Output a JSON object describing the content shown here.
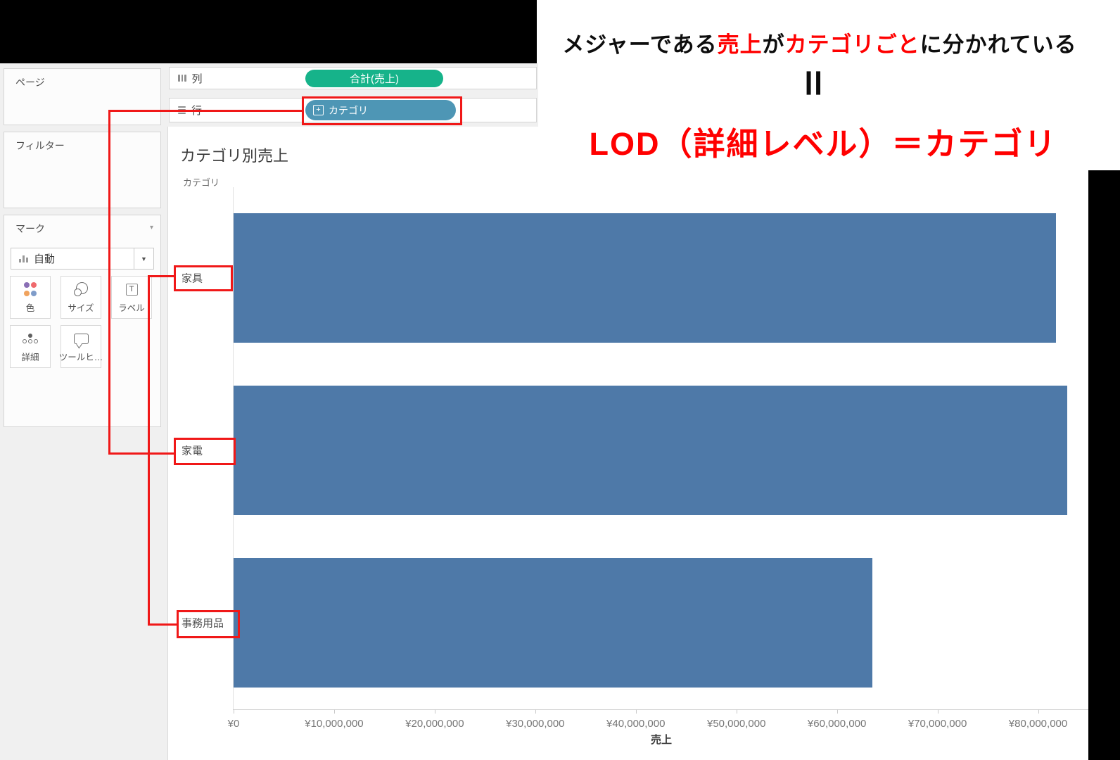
{
  "annotation": {
    "line1_parts": [
      {
        "text": "メジャーである",
        "color": "#0d0d0d"
      },
      {
        "text": "売上",
        "color": "#ff0000"
      },
      {
        "text": "が",
        "color": "#0d0d0d"
      },
      {
        "text": "カテゴリごと",
        "color": "#ff0000"
      },
      {
        "text": "に分かれている",
        "color": "#0d0d0d"
      }
    ],
    "equals_symbol": "＝",
    "line2": "LOD（詳細レベル）＝カテゴリ"
  },
  "sidebar": {
    "pages_label": "ページ",
    "filters_label": "フィルター",
    "marks": {
      "title": "マーク",
      "mark_type": "自動",
      "buttons": [
        {
          "label": "色"
        },
        {
          "label": "サイズ"
        },
        {
          "label": "ラベル",
          "icon_glyph": "T"
        },
        {
          "label": "詳細"
        },
        {
          "label": "ツールヒ…"
        }
      ]
    }
  },
  "shelves": {
    "columns_label": "列",
    "columns_pill": "合計(売上)",
    "rows_label": "行",
    "rows_pill": "カテゴリ",
    "rows_pill_icon_glyph": "+"
  },
  "chart_data": {
    "type": "bar",
    "orientation": "horizontal",
    "title": "カテゴリ別売上",
    "row_header": "カテゴリ",
    "categories": [
      "家具",
      "家電",
      "事務用品"
    ],
    "values": [
      81800000,
      82900000,
      63500000
    ],
    "xlabel": "売上",
    "x_ticks": [
      "¥0",
      "¥10,000,000",
      "¥20,000,000",
      "¥30,000,000",
      "¥40,000,000",
      "¥50,000,000",
      "¥60,000,000",
      "¥70,000,000",
      "¥80,000,000"
    ],
    "x_tick_values": [
      0,
      10000000,
      20000000,
      30000000,
      40000000,
      50000000,
      60000000,
      70000000,
      80000000
    ],
    "x_axis_max_rendered": 85000000,
    "grid": false,
    "legend": "none"
  },
  "colors": {
    "bar": "#4e79a8",
    "pill_green": "#16b38a",
    "pill_blue": "#4e96b5",
    "overlay_red": "#f01818",
    "annotation_red": "#ff0000",
    "color_button_dots": [
      "#8a6fb5",
      "#ef6a6d",
      "#f0a35e",
      "#7f9cc9"
    ]
  }
}
